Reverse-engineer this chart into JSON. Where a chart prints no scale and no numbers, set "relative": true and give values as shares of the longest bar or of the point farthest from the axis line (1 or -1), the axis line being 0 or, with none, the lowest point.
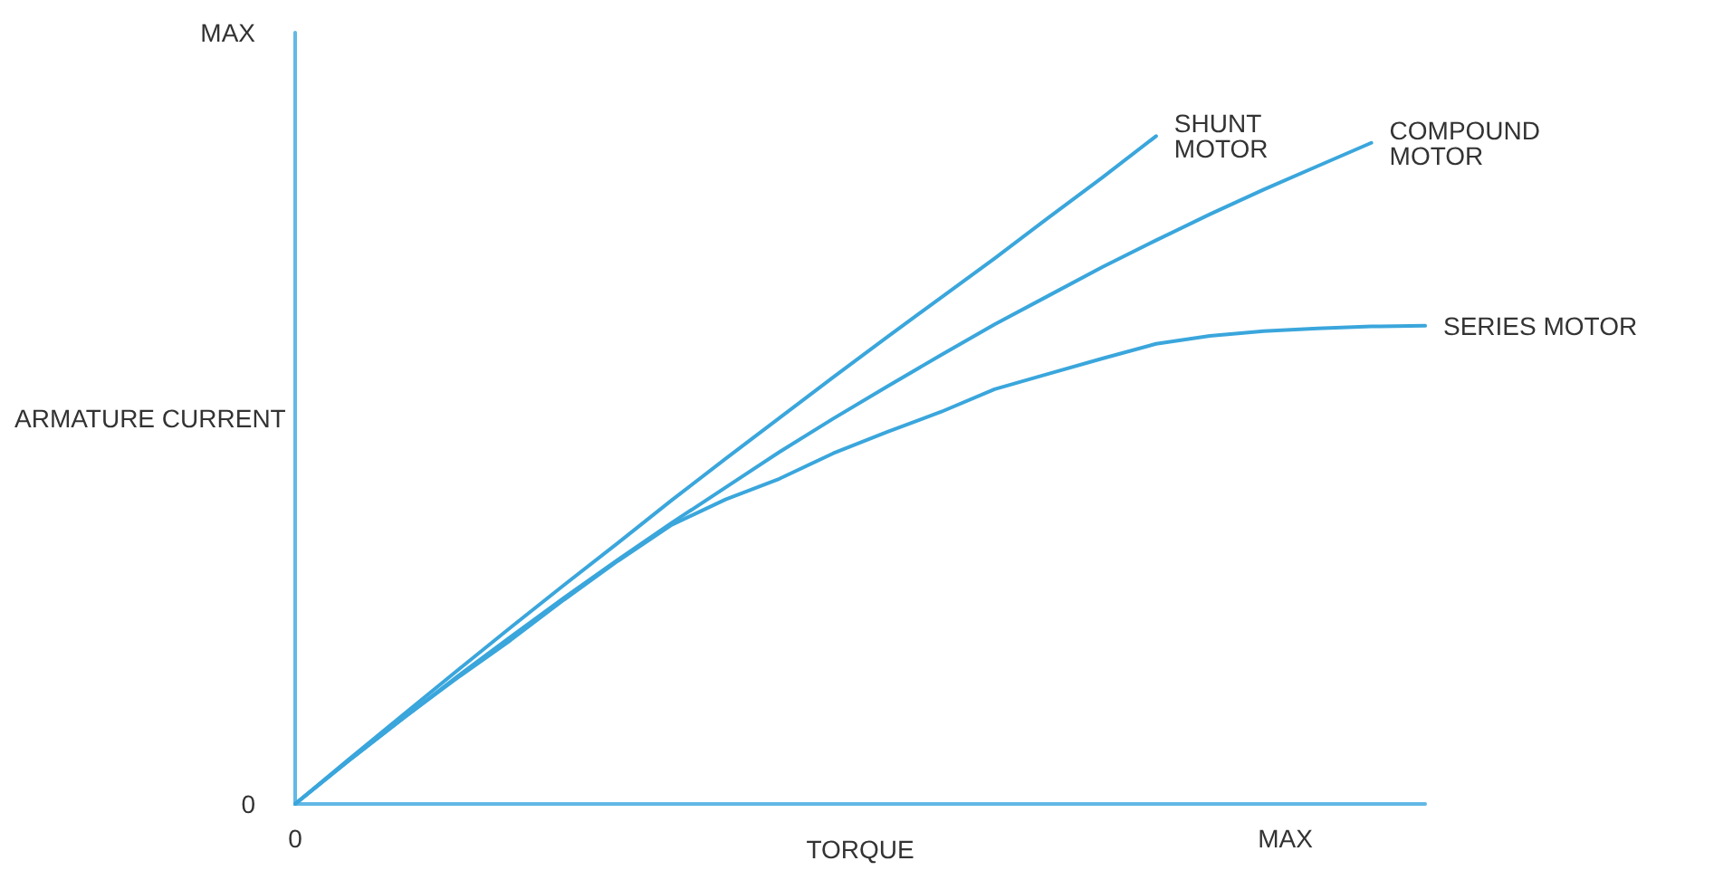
{
  "chart_data": {
    "type": "line",
    "relative": true,
    "xlabel": "TORQUE",
    "ylabel": "ARMATURE CURRENT",
    "categories": [
      null,
      null,
      null,
      null,
      null,
      null,
      null,
      null,
      null,
      null,
      null,
      null,
      null,
      null,
      null,
      null,
      null,
      null,
      null,
      null,
      null,
      null
    ],
    "annotations": [
      "0",
      "MAX",
      "0",
      "MAX"
    ],
    "grid": false,
    "legend": false,
    "marker": "none",
    "line_style": "solid",
    "series": [
      {
        "name": "SHUNT MOTOR",
        "color": "#3aa6dc",
        "values": [
          0,
          0.067,
          0.133,
          0.199,
          0.264,
          0.328,
          0.391,
          0.455,
          0.517,
          0.578,
          0.639,
          0.699,
          0.758,
          0.817,
          0.878,
          0.938,
          1,
          null,
          null,
          null,
          null,
          null
        ]
      },
      {
        "name": "COMPOUND MOTOR",
        "color": "#3aa6dc",
        "values": [
          0,
          0.065,
          0.128,
          0.19,
          0.25,
          0.309,
          0.366,
          0.421,
          0.474,
          0.527,
          0.577,
          0.625,
          0.672,
          0.718,
          0.761,
          0.804,
          0.844,
          0.883,
          0.92,
          0.955,
          0.99,
          null
        ]
      },
      {
        "name": "SERIES MOTOR",
        "color": "#3aa6dc",
        "values": [
          0,
          0.065,
          0.128,
          0.188,
          0.245,
          0.306,
          0.364,
          0.418,
          0.456,
          0.487,
          0.525,
          0.557,
          0.587,
          0.621,
          0.644,
          0.667,
          0.689,
          0.701,
          0.708,
          0.712,
          0.715,
          0.716
        ]
      }
    ]
  }
}
